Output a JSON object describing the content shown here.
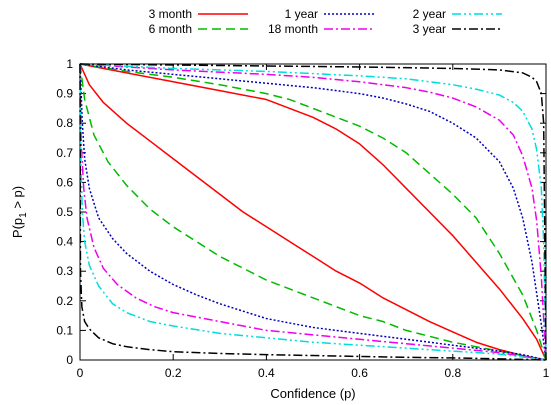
{
  "chart_data": {
    "type": "line",
    "title": "",
    "xlabel": "Confidence (p)",
    "ylabel_main": "P(p",
    "ylabel_sub": "1",
    "ylabel_tail": " > p)",
    "xlim": [
      0,
      1
    ],
    "ylim": [
      0,
      1
    ],
    "x_ticks": [
      "0",
      "0.2",
      "0.4",
      "0.6",
      "0.8",
      "1"
    ],
    "y_ticks": [
      "0",
      "0.1",
      "0.2",
      "0.3",
      "0.4",
      "0.5",
      "0.6",
      "0.7",
      "0.8",
      "0.9",
      "1"
    ],
    "grid": false,
    "legend_position": "top",
    "series": [
      {
        "name": "3 month",
        "color": "#ff0000",
        "dash": "",
        "lower": [
          [
            0,
            1
          ],
          [
            0.02,
            0.93
          ],
          [
            0.05,
            0.87
          ],
          [
            0.1,
            0.8
          ],
          [
            0.15,
            0.74
          ],
          [
            0.2,
            0.68
          ],
          [
            0.25,
            0.62
          ],
          [
            0.3,
            0.56
          ],
          [
            0.35,
            0.5
          ],
          [
            0.4,
            0.45
          ],
          [
            0.45,
            0.4
          ],
          [
            0.5,
            0.35
          ],
          [
            0.55,
            0.3
          ],
          [
            0.6,
            0.26
          ],
          [
            0.65,
            0.21
          ],
          [
            0.7,
            0.17
          ],
          [
            0.75,
            0.13
          ],
          [
            0.8,
            0.095
          ],
          [
            0.85,
            0.06
          ],
          [
            0.9,
            0.035
          ],
          [
            0.95,
            0.015
          ],
          [
            1,
            0
          ]
        ],
        "upper": [
          [
            0,
            1
          ],
          [
            0.1,
            0.97
          ],
          [
            0.2,
            0.94
          ],
          [
            0.3,
            0.91
          ],
          [
            0.4,
            0.88
          ],
          [
            0.45,
            0.85
          ],
          [
            0.5,
            0.82
          ],
          [
            0.55,
            0.78
          ],
          [
            0.6,
            0.73
          ],
          [
            0.65,
            0.66
          ],
          [
            0.7,
            0.58
          ],
          [
            0.75,
            0.5
          ],
          [
            0.8,
            0.42
          ],
          [
            0.85,
            0.33
          ],
          [
            0.9,
            0.24
          ],
          [
            0.95,
            0.14
          ],
          [
            0.98,
            0.07
          ],
          [
            1,
            0
          ]
        ]
      },
      {
        "name": "6 month",
        "color": "#00bb00",
        "dash": "9,5",
        "lower": [
          [
            0,
            1
          ],
          [
            0.01,
            0.88
          ],
          [
            0.03,
            0.76
          ],
          [
            0.06,
            0.67
          ],
          [
            0.1,
            0.59
          ],
          [
            0.15,
            0.51
          ],
          [
            0.2,
            0.45
          ],
          [
            0.25,
            0.4
          ],
          [
            0.3,
            0.35
          ],
          [
            0.35,
            0.31
          ],
          [
            0.4,
            0.27
          ],
          [
            0.45,
            0.24
          ],
          [
            0.5,
            0.21
          ],
          [
            0.55,
            0.18
          ],
          [
            0.6,
            0.15
          ],
          [
            0.65,
            0.13
          ],
          [
            0.7,
            0.1
          ],
          [
            0.75,
            0.08
          ],
          [
            0.8,
            0.06
          ],
          [
            0.85,
            0.045
          ],
          [
            0.9,
            0.03
          ],
          [
            0.95,
            0.015
          ],
          [
            1,
            0
          ]
        ],
        "upper": [
          [
            0,
            1
          ],
          [
            0.1,
            0.975
          ],
          [
            0.2,
            0.955
          ],
          [
            0.3,
            0.93
          ],
          [
            0.4,
            0.9
          ],
          [
            0.45,
            0.88
          ],
          [
            0.5,
            0.85
          ],
          [
            0.55,
            0.82
          ],
          [
            0.6,
            0.79
          ],
          [
            0.65,
            0.75
          ],
          [
            0.7,
            0.7
          ],
          [
            0.75,
            0.63
          ],
          [
            0.8,
            0.56
          ],
          [
            0.85,
            0.48
          ],
          [
            0.9,
            0.36
          ],
          [
            0.95,
            0.22
          ],
          [
            0.98,
            0.1
          ],
          [
            1,
            0
          ]
        ]
      },
      {
        "name": "1 year",
        "color": "#0000bb",
        "dash": "2,2",
        "lower": [
          [
            0,
            1
          ],
          [
            0.005,
            0.8
          ],
          [
            0.01,
            0.68
          ],
          [
            0.02,
            0.58
          ],
          [
            0.04,
            0.48
          ],
          [
            0.07,
            0.41
          ],
          [
            0.1,
            0.36
          ],
          [
            0.15,
            0.3
          ],
          [
            0.2,
            0.255
          ],
          [
            0.25,
            0.22
          ],
          [
            0.3,
            0.19
          ],
          [
            0.35,
            0.165
          ],
          [
            0.4,
            0.14
          ],
          [
            0.5,
            0.11
          ],
          [
            0.6,
            0.09
          ],
          [
            0.7,
            0.07
          ],
          [
            0.8,
            0.05
          ],
          [
            0.9,
            0.03
          ],
          [
            0.95,
            0.018
          ],
          [
            1,
            0
          ]
        ],
        "upper": [
          [
            0,
            1
          ],
          [
            0.1,
            0.98
          ],
          [
            0.2,
            0.965
          ],
          [
            0.3,
            0.95
          ],
          [
            0.4,
            0.935
          ],
          [
            0.5,
            0.92
          ],
          [
            0.6,
            0.9
          ],
          [
            0.65,
            0.885
          ],
          [
            0.7,
            0.865
          ],
          [
            0.75,
            0.84
          ],
          [
            0.8,
            0.8
          ],
          [
            0.85,
            0.75
          ],
          [
            0.9,
            0.67
          ],
          [
            0.93,
            0.58
          ],
          [
            0.95,
            0.48
          ],
          [
            0.97,
            0.33
          ],
          [
            0.99,
            0.12
          ],
          [
            1,
            0
          ]
        ]
      },
      {
        "name": "18 month",
        "color": "#ee00ee",
        "dash": "9,3,2,3",
        "lower": [
          [
            0,
            1
          ],
          [
            0.003,
            0.72
          ],
          [
            0.008,
            0.58
          ],
          [
            0.015,
            0.48
          ],
          [
            0.03,
            0.38
          ],
          [
            0.05,
            0.31
          ],
          [
            0.08,
            0.255
          ],
          [
            0.12,
            0.21
          ],
          [
            0.16,
            0.18
          ],
          [
            0.2,
            0.16
          ],
          [
            0.3,
            0.13
          ],
          [
            0.4,
            0.1
          ],
          [
            0.5,
            0.085
          ],
          [
            0.6,
            0.07
          ],
          [
            0.7,
            0.055
          ],
          [
            0.8,
            0.04
          ],
          [
            0.9,
            0.025
          ],
          [
            1,
            0
          ]
        ],
        "upper": [
          [
            0,
            1
          ],
          [
            0.2,
            0.98
          ],
          [
            0.4,
            0.965
          ],
          [
            0.5,
            0.955
          ],
          [
            0.6,
            0.94
          ],
          [
            0.7,
            0.92
          ],
          [
            0.75,
            0.905
          ],
          [
            0.8,
            0.885
          ],
          [
            0.85,
            0.855
          ],
          [
            0.9,
            0.81
          ],
          [
            0.93,
            0.76
          ],
          [
            0.95,
            0.69
          ],
          [
            0.97,
            0.58
          ],
          [
            0.98,
            0.47
          ],
          [
            0.99,
            0.28
          ],
          [
            1,
            0
          ]
        ]
      },
      {
        "name": "2 year",
        "color": "#00dddd",
        "dash": "9,3,2,3,2,3",
        "lower": [
          [
            0,
            1
          ],
          [
            0.002,
            0.66
          ],
          [
            0.005,
            0.5
          ],
          [
            0.01,
            0.4
          ],
          [
            0.02,
            0.32
          ],
          [
            0.04,
            0.25
          ],
          [
            0.07,
            0.19
          ],
          [
            0.1,
            0.16
          ],
          [
            0.15,
            0.13
          ],
          [
            0.2,
            0.115
          ],
          [
            0.3,
            0.09
          ],
          [
            0.4,
            0.075
          ],
          [
            0.5,
            0.06
          ],
          [
            0.6,
            0.05
          ],
          [
            0.7,
            0.04
          ],
          [
            0.8,
            0.03
          ],
          [
            0.9,
            0.02
          ],
          [
            1,
            0
          ]
        ],
        "upper": [
          [
            0,
            1
          ],
          [
            0.2,
            0.985
          ],
          [
            0.4,
            0.975
          ],
          [
            0.6,
            0.96
          ],
          [
            0.7,
            0.95
          ],
          [
            0.8,
            0.93
          ],
          [
            0.85,
            0.915
          ],
          [
            0.9,
            0.895
          ],
          [
            0.93,
            0.87
          ],
          [
            0.95,
            0.84
          ],
          [
            0.97,
            0.78
          ],
          [
            0.98,
            0.71
          ],
          [
            0.99,
            0.58
          ],
          [
            0.995,
            0.4
          ],
          [
            1,
            0
          ]
        ]
      },
      {
        "name": "3 year",
        "color": "#000000",
        "dash": "9,3,2,3",
        "lower": [
          [
            0,
            1
          ],
          [
            0.001,
            0.3
          ],
          [
            0.004,
            0.18
          ],
          [
            0.01,
            0.13
          ],
          [
            0.02,
            0.105
          ],
          [
            0.04,
            0.075
          ],
          [
            0.07,
            0.055
          ],
          [
            0.1,
            0.045
          ],
          [
            0.15,
            0.035
          ],
          [
            0.2,
            0.028
          ],
          [
            0.3,
            0.022
          ],
          [
            0.4,
            0.018
          ],
          [
            0.5,
            0.015
          ],
          [
            0.6,
            0.012
          ],
          [
            0.7,
            0.009
          ],
          [
            0.8,
            0.007
          ],
          [
            0.9,
            0.004
          ],
          [
            1,
            0
          ]
        ],
        "upper": [
          [
            0,
            1
          ],
          [
            0.3,
            0.995
          ],
          [
            0.6,
            0.99
          ],
          [
            0.8,
            0.985
          ],
          [
            0.9,
            0.98
          ],
          [
            0.95,
            0.97
          ],
          [
            0.97,
            0.955
          ],
          [
            0.98,
            0.94
          ],
          [
            0.99,
            0.9
          ],
          [
            0.995,
            0.8
          ],
          [
            1,
            0
          ]
        ]
      }
    ]
  }
}
